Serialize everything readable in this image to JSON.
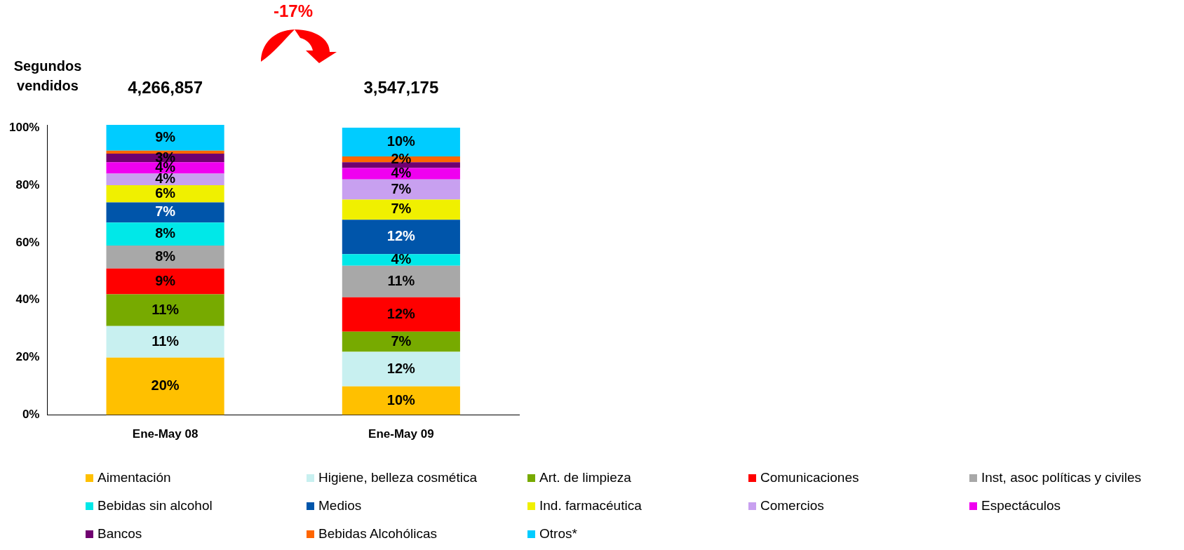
{
  "chart_data": {
    "type": "bar",
    "stacked": true,
    "ylabel": "Segundos vendidos",
    "categories": [
      "Ene-May 08",
      "Ene-May 09"
    ],
    "ylim": [
      0,
      101
    ],
    "yticks": [
      {
        "value": 0,
        "label": "0%"
      },
      {
        "value": 20,
        "label": "20%"
      },
      {
        "value": 40,
        "label": "40%"
      },
      {
        "value": 60,
        "label": "60%"
      },
      {
        "value": 80,
        "label": "80%"
      },
      {
        "value": 100,
        "label": "100%"
      }
    ],
    "annotations": [
      "-17%",
      "4,266,857",
      "3,547,175"
    ],
    "legend": "bottom",
    "grid": false,
    "series": [
      {
        "name": "Aimentación",
        "color": "#ffc000",
        "values": [
          20,
          10
        ],
        "value_labels": [
          "20%",
          "10%"
        ]
      },
      {
        "name": "Higiene, belleza cosmética",
        "color": "#c8f0f0",
        "values": [
          11,
          12
        ],
        "value_labels": [
          "11%",
          "12%"
        ]
      },
      {
        "name": "Art. de limpieza",
        "color": "#77aa00",
        "values": [
          11,
          7
        ],
        "value_labels": [
          "11%",
          "7%"
        ]
      },
      {
        "name": "Comunicaciones",
        "color": "#ff0000",
        "values": [
          9,
          12
        ],
        "value_labels": [
          "9%",
          "12%"
        ]
      },
      {
        "name": "Inst, asoc políticas y civiles",
        "color": "#a8a8a8",
        "values": [
          8,
          11
        ],
        "value_labels": [
          "8%",
          "11%"
        ]
      },
      {
        "name": "Bebidas sin alcohol",
        "color": "#00e8e8",
        "values": [
          8,
          4
        ],
        "value_labels": [
          "8%",
          "4%"
        ]
      },
      {
        "name": "Medios",
        "color": "#0055aa",
        "values": [
          7,
          12
        ],
        "value_labels": [
          "7%",
          "12%"
        ]
      },
      {
        "name": "Ind. farmacéutica",
        "color": "#f0f000",
        "values": [
          6,
          7
        ],
        "value_labels": [
          "6%",
          "7%"
        ]
      },
      {
        "name": "Comercios",
        "color": "#c8a0f0",
        "values": [
          4,
          7
        ],
        "value_labels": [
          "4%",
          "7%"
        ]
      },
      {
        "name": "Espectáculos",
        "color": "#f000f0",
        "values": [
          4,
          4
        ],
        "value_labels": [
          "4%",
          "4%"
        ]
      },
      {
        "name": "Bancos",
        "color": "#700070",
        "values": [
          3,
          2
        ],
        "value_labels": [
          "3%",
          null
        ]
      },
      {
        "name": "Bebidas Alcohólicas",
        "color": "#ff6600",
        "values": [
          1,
          2
        ],
        "value_labels": [
          null,
          "2%"
        ]
      },
      {
        "name": "Otros*",
        "color": "#00ccff",
        "values": [
          9,
          10
        ],
        "value_labels": [
          "9%",
          "10%"
        ]
      }
    ]
  }
}
